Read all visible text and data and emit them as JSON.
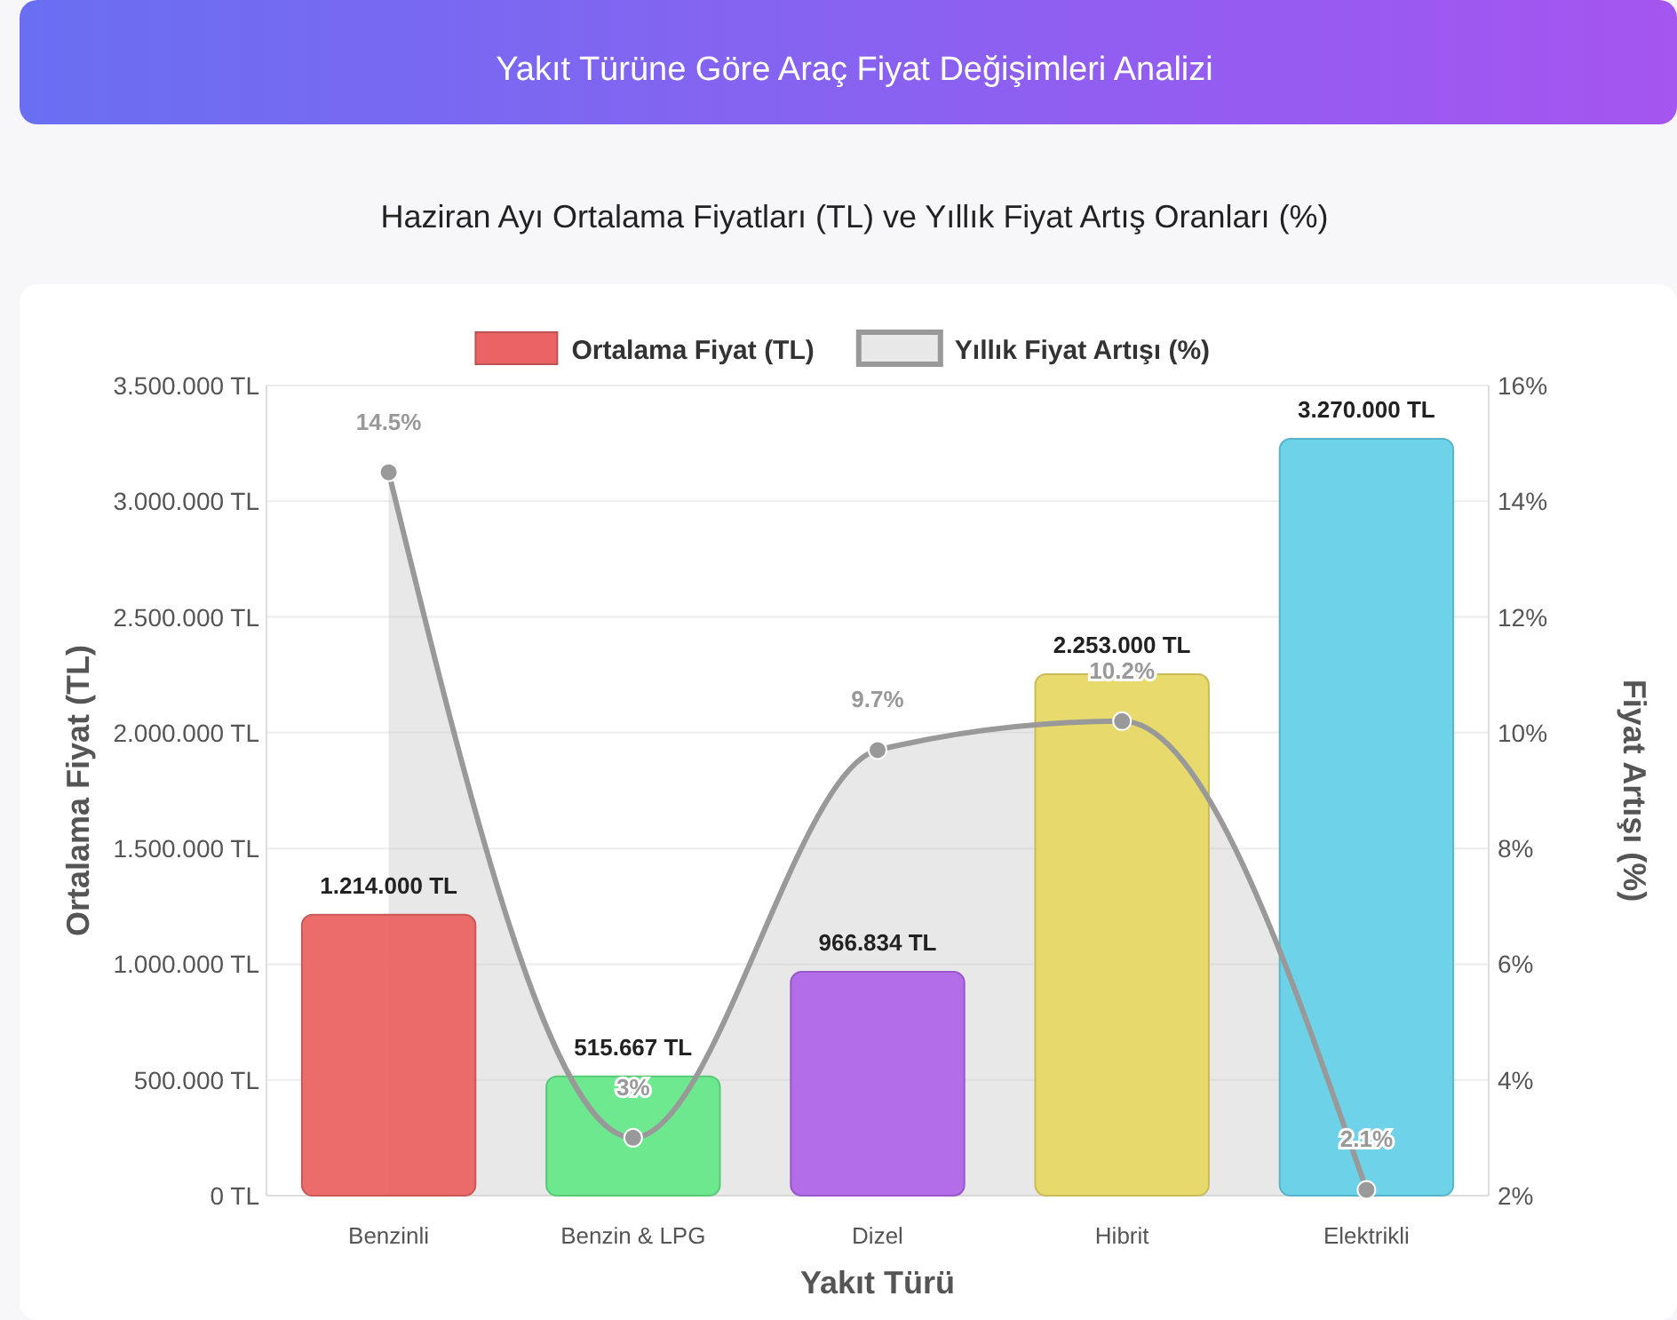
{
  "chart_data": {
    "type": "bar",
    "title": "Yakıt Türüne Göre Araç Fiyat Değişimleri Analizi",
    "subtitle": "Haziran Ayı Ortalama Fiyatları (TL) ve Yıllık Fiyat Artış Oranları (%)",
    "xlabel": "Yakıt Türü",
    "ylabel": "Ortalama Fiyat (TL)",
    "y2label": "Fiyat Artışı (%)",
    "categories": [
      "Benzinli",
      "Benzin & LPG",
      "Dizel",
      "Hibrit",
      "Elektrikli"
    ],
    "series": [
      {
        "name": "Ortalama Fiyat (TL)",
        "colors": [
          "#eb6464",
          "#66e889",
          "#b066e8",
          "#e8d866",
          "#66d0e8"
        ],
        "values": [
          1214000,
          515667,
          966834,
          2253000,
          3270000
        ],
        "value_labels": [
          "1.214.000 TL",
          "515.667 TL",
          "966.834 TL",
          "2.253.000 TL",
          "3.270.000 TL"
        ]
      },
      {
        "name": "Yıllık Fiyat Artışı (%)",
        "type": "area",
        "axis": "y2",
        "color": "#999999",
        "marker": "circle",
        "values": [
          14.5,
          3,
          9.7,
          10.2,
          2.1
        ],
        "value_labels": [
          "14.5%",
          "3%",
          "9.7%",
          "10.2%",
          "2.1%"
        ]
      }
    ],
    "ylim": [
      0,
      3500000
    ],
    "yticks": [
      {
        "value": 0,
        "label": "0 TL"
      },
      {
        "value": 500000,
        "label": "500.000 TL"
      },
      {
        "value": 1000000,
        "label": "1.000.000 TL"
      },
      {
        "value": 1500000,
        "label": "1.500.000 TL"
      },
      {
        "value": 2000000,
        "label": "2.000.000 TL"
      },
      {
        "value": 2500000,
        "label": "2.500.000 TL"
      },
      {
        "value": 3000000,
        "label": "3.000.000 TL"
      },
      {
        "value": 3500000,
        "label": "3.500.000 TL"
      }
    ],
    "y2lim": [
      2,
      16
    ],
    "y2ticks": [
      {
        "value": 2,
        "label": "2%"
      },
      {
        "value": 4,
        "label": "4%"
      },
      {
        "value": 6,
        "label": "6%"
      },
      {
        "value": 8,
        "label": "8%"
      },
      {
        "value": 10,
        "label": "10%"
      },
      {
        "value": 12,
        "label": "12%"
      },
      {
        "value": 14,
        "label": "14%"
      },
      {
        "value": 16,
        "label": "16%"
      }
    ],
    "grid": "y",
    "legend": "top"
  }
}
